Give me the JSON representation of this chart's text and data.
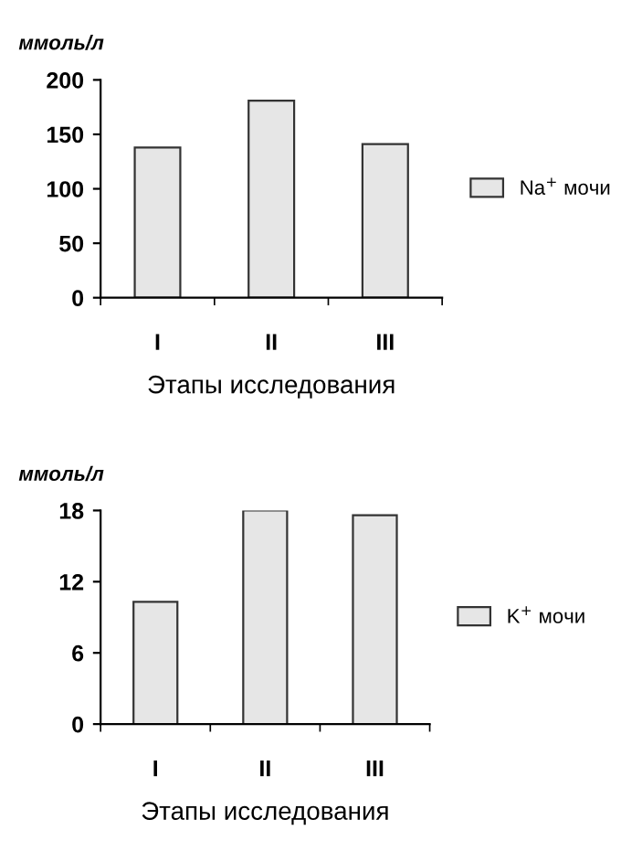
{
  "chart_data": [
    {
      "type": "bar",
      "ylabel": "ммоль/л",
      "xlabel": "Этапы исследования",
      "categories": [
        "I",
        "II",
        "III"
      ],
      "series": [
        {
          "name": "Na$^{+}$ мочи",
          "color": "#e6e6e6",
          "values": [
            138,
            181,
            141
          ]
        }
      ],
      "ylim": [
        0,
        200
      ],
      "yticks": [
        0,
        50,
        100,
        150,
        200
      ],
      "grid": false,
      "legend": "right"
    },
    {
      "type": "bar",
      "ylabel": "ммоль/л",
      "xlabel": "Этапы исследования",
      "categories": [
        "I",
        "II",
        "III"
      ],
      "series": [
        {
          "name": "K$^{+}$ мочи",
          "color": "#e6e6e6",
          "values": [
            10.3,
            18,
            17.6
          ]
        }
      ],
      "ylim": [
        0,
        18
      ],
      "yticks": [
        0,
        6,
        12,
        18
      ],
      "grid": false,
      "legend": "right"
    }
  ]
}
